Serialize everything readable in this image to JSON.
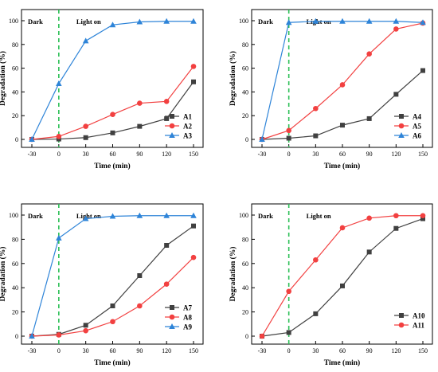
{
  "chart_data": [
    {
      "type": "line",
      "x": [
        -30,
        0,
        30,
        60,
        90,
        120,
        150
      ],
      "xticks": [
        "-30",
        "0",
        "30",
        "60",
        "90",
        "120",
        "150"
      ],
      "xlabel": "Time (min)",
      "ylabel": "Degradation (%)",
      "ylim": [
        0,
        100
      ],
      "yticks": [
        "0",
        "20",
        "40",
        "60",
        "80",
        "100"
      ],
      "legend_position": "bottom-right",
      "annotations": {
        "dark": "Dark",
        "light": "Light on",
        "light_on_x": 0
      },
      "series": [
        {
          "name": "A1",
          "color": "#404040",
          "marker": "square",
          "values": [
            0,
            0.3,
            1.5,
            5.5,
            11,
            17.5,
            48.5
          ]
        },
        {
          "name": "A2",
          "color": "#f24040",
          "marker": "circle",
          "values": [
            0,
            2.5,
            11,
            21,
            30.5,
            32,
            61.5
          ]
        },
        {
          "name": "A3",
          "color": "#2e84d8",
          "marker": "triangle",
          "values": [
            0,
            47,
            83,
            96.5,
            99,
            99.5,
            99.5
          ]
        }
      ]
    },
    {
      "type": "line",
      "x": [
        -30,
        0,
        30,
        60,
        90,
        120,
        150
      ],
      "xticks": [
        "-30",
        "0",
        "30",
        "60",
        "90",
        "120",
        "150"
      ],
      "xlabel": "Time (min)",
      "ylabel": "Degradation (%)",
      "ylim": [
        0,
        100
      ],
      "yticks": [
        "0",
        "20",
        "40",
        "60",
        "80",
        "100"
      ],
      "legend_position": "bottom-right",
      "annotations": {
        "dark": "Dark",
        "light": "Light on",
        "light_on_x": 0
      },
      "series": [
        {
          "name": "A4",
          "color": "#404040",
          "marker": "square",
          "values": [
            0,
            1,
            3,
            12,
            17.5,
            38,
            58
          ]
        },
        {
          "name": "A5",
          "color": "#f24040",
          "marker": "circle",
          "values": [
            0,
            7.5,
            26,
            46,
            72,
            93,
            98
          ]
        },
        {
          "name": "A6",
          "color": "#2e84d8",
          "marker": "triangle",
          "values": [
            0,
            98.5,
            99.5,
            99.5,
            99.5,
            99.5,
            98.5
          ]
        }
      ]
    },
    {
      "type": "line",
      "x": [
        -30,
        0,
        30,
        60,
        90,
        120,
        150
      ],
      "xticks": [
        "-30",
        "0",
        "30",
        "60",
        "90",
        "120",
        "150"
      ],
      "xlabel": "Time (min)",
      "ylabel": "Degradation (%)",
      "ylim": [
        0,
        100
      ],
      "yticks": [
        "0",
        "20",
        "40",
        "60",
        "80",
        "100"
      ],
      "legend_position": "bottom-right",
      "annotations": {
        "dark": "Dark",
        "light": "Light on",
        "light_on_x": 0
      },
      "series": [
        {
          "name": "A7",
          "color": "#404040",
          "marker": "square",
          "values": [
            0,
            1.5,
            9,
            25,
            50,
            75,
            91
          ]
        },
        {
          "name": "A8",
          "color": "#f24040",
          "marker": "circle",
          "values": [
            0,
            1,
            4.5,
            12,
            25,
            43,
            65
          ]
        },
        {
          "name": "A9",
          "color": "#2e84d8",
          "marker": "triangle",
          "values": [
            0,
            81,
            97,
            99,
            99.5,
            99.5,
            99.5
          ]
        }
      ]
    },
    {
      "type": "line",
      "x": [
        -30,
        0,
        30,
        60,
        90,
        120,
        150
      ],
      "xticks": [
        "-30",
        "0",
        "30",
        "60",
        "90",
        "120",
        "150"
      ],
      "xlabel": "Time (min)",
      "ylabel": "Degradation (%)",
      "ylim": [
        0,
        100
      ],
      "yticks": [
        "0",
        "20",
        "40",
        "60",
        "80",
        "100"
      ],
      "legend_position": "bottom-right",
      "annotations": {
        "dark": "Dark",
        "light": "Light on",
        "light_on_x": 0
      },
      "series": [
        {
          "name": "A10",
          "color": "#404040",
          "marker": "square",
          "values": [
            0,
            3,
            18.5,
            41.5,
            69.5,
            89,
            97
          ]
        },
        {
          "name": "A11",
          "color": "#f24040",
          "marker": "circle",
          "values": [
            0,
            37,
            63,
            89.5,
            97.5,
            99.5,
            99.5
          ]
        }
      ]
    }
  ]
}
